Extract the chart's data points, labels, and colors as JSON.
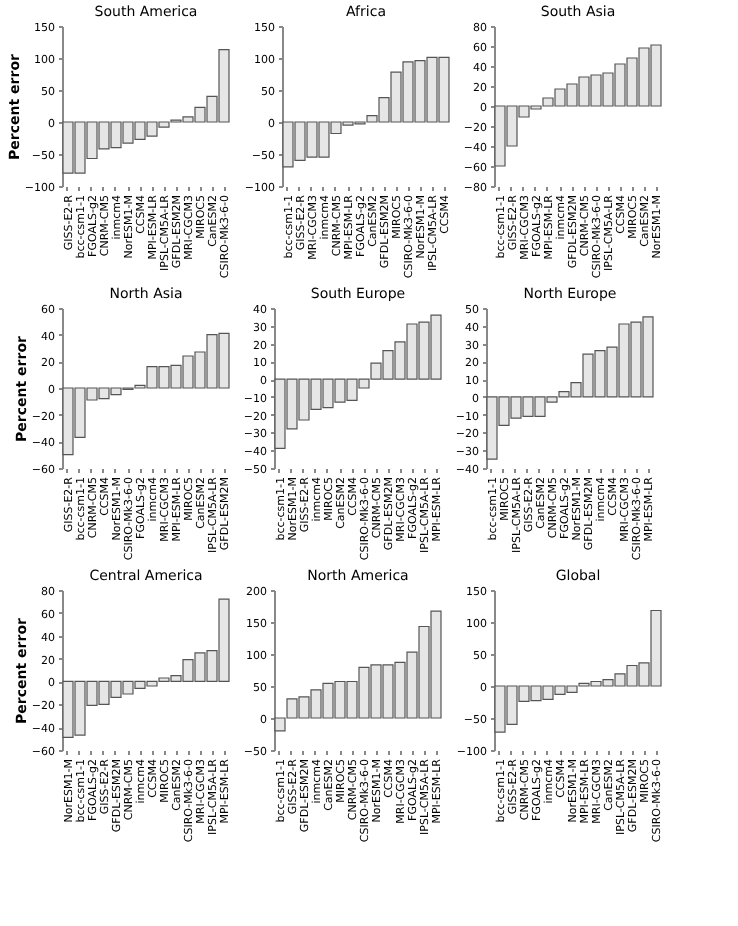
{
  "chart_data": [
    {
      "type": "bar",
      "title": "South America",
      "ylabel": "Percent error",
      "color": "#e6e6e6",
      "ylim": [
        -100,
        150
      ],
      "yticks": [
        -100,
        -50,
        0,
        50,
        100,
        150
      ],
      "categories": [
        "GISS-E2-R",
        "bcc-csm1-1",
        "FGOALS-g2",
        "CNRM-CM5",
        "inmcm4",
        "NorESM1-M",
        "CCSM4",
        "MPI-ESM-LR",
        "IPSL-CM5A-LR",
        "GFDL-ESM2M",
        "MRI-CGCM3",
        "MIROC5",
        "CanESM2",
        "CSIRO-Mk3-6-0"
      ],
      "values": [
        -80,
        -80,
        -57,
        -42,
        -40,
        -33,
        -27,
        -22,
        -8,
        3,
        8,
        23,
        40,
        113
      ]
    },
    {
      "type": "bar",
      "title": "Africa",
      "color": "#e6e6e6",
      "ylim": [
        -100,
        150
      ],
      "yticks": [
        -100,
        -50,
        0,
        50,
        100,
        150
      ],
      "categories": [
        "bcc-csm1-1",
        "GISS-E2-R",
        "MRI-CGCM3",
        "inmcm4",
        "CNRM-CM5",
        "MPI-ESM-LR",
        "FGOALS-g2",
        "CanESM2",
        "GFDL-ESM2M",
        "MIROC5",
        "CSIRO-Mk3-6-0",
        "NorESM1-M",
        "IPSL-CM5A-LR",
        "CCSM4"
      ],
      "values": [
        -70,
        -60,
        -55,
        -55,
        -18,
        -5,
        -3,
        10,
        38,
        78,
        94,
        96,
        101,
        101
      ]
    },
    {
      "type": "bar",
      "title": "South Asia",
      "color": "#e6e6e6",
      "ylim": [
        -80,
        80
      ],
      "yticks": [
        -80,
        -60,
        -40,
        -20,
        0,
        20,
        40,
        60,
        80
      ],
      "categories": [
        "bcc-csm1-1",
        "GISS-E2-R",
        "MRI-CGCM3",
        "FGOALS-g2",
        "MPI-ESM-LR",
        "inmcm4",
        "GFDL-ESM2M",
        "CNRM-CM5",
        "CSIRO-Mk3-6-0",
        "IPSL-CM5A-LR",
        "CCSM4",
        "MIROC5",
        "CanESM2",
        "NorESM1-M"
      ],
      "values": [
        -60,
        -40,
        -11,
        -3,
        8,
        17,
        22,
        29,
        31,
        33,
        42,
        48,
        58,
        61
      ]
    },
    {
      "type": "bar",
      "title": "North Asia",
      "ylabel": "Percent error",
      "color": "#e6e6e6",
      "ylim": [
        -60,
        60
      ],
      "yticks": [
        -60,
        -40,
        -20,
        0,
        20,
        40,
        60
      ],
      "categories": [
        "GISS-E2-R",
        "bcc-csm1-1",
        "CNRM-CM5",
        "CCSM4",
        "NorESM1-M",
        "CSIRO-Mk3-6-0",
        "FGOALS-g2",
        "inmcm4",
        "MRI-CGCM3",
        "MPI-ESM-LR",
        "MIROC5",
        "CanESM2",
        "IPSL-CM5A-LR",
        "GFDL-ESM2M"
      ],
      "values": [
        -50,
        -37,
        -9,
        -8,
        -5,
        -1,
        2,
        16,
        16,
        17,
        24,
        27,
        40,
        41
      ]
    },
    {
      "type": "bar",
      "title": "South Europe",
      "color": "#e6e6e6",
      "ylim": [
        -50,
        40
      ],
      "yticks": [
        -50,
        -40,
        -30,
        -20,
        -10,
        0,
        10,
        20,
        30,
        40
      ],
      "categories": [
        "bcc-csm1-1",
        "NorESM1-M",
        "GISS-E2-R",
        "inmcm4",
        "MIROC5",
        "CanESM2",
        "CCSM4",
        "CSIRO-Mk3-6-0",
        "CNRM-CM5",
        "GFDL-ESM2M",
        "MRI-CGCM3",
        "FGOALS-g2",
        "IPSL-CM5A-LR",
        "MPI-ESM-LR"
      ],
      "values": [
        -39,
        -28,
        -23,
        -17,
        -16,
        -13,
        -12,
        -5,
        9,
        16,
        21,
        31,
        32,
        36
      ]
    },
    {
      "type": "bar",
      "title": "North Europe",
      "color": "#e6e6e6",
      "ylim": [
        -40,
        50
      ],
      "yticks": [
        -40,
        -30,
        -20,
        -10,
        0,
        10,
        20,
        30,
        40,
        50
      ],
      "categories": [
        "bcc-csm1-1",
        "MIROC5",
        "IPSL-CM5A-LR",
        "GISS-E2-R",
        "CanESM2",
        "CNRM-CM5",
        "FGOALS-g2",
        "NorESM1-M",
        "GFDL-ESM2M",
        "inmcm4",
        "CCSM4",
        "MRI-CGCM3",
        "CSIRO-Mk3-6-0",
        "MPI-ESM-LR"
      ],
      "values": [
        -35,
        -16,
        -12,
        -11,
        -11,
        -3,
        3,
        8,
        24,
        26,
        28,
        41,
        42,
        45
      ]
    },
    {
      "type": "bar",
      "title": "Central America",
      "ylabel": "Percent error",
      "color": "#e6e6e6",
      "ylim": [
        -60,
        80
      ],
      "yticks": [
        -60,
        -40,
        -20,
        0,
        20,
        40,
        60,
        80
      ],
      "categories": [
        "NorESM1-M",
        "bcc-csm1-1",
        "FGOALS-g2",
        "GISS-E2-R",
        "GFDL-ESM2M",
        "CNRM-CM5",
        "inmcm4",
        "CCSM4",
        "MIROC5",
        "CanESM2",
        "CSIRO-Mk3-6-0",
        "MRI-CGCM3",
        "IPSL-CM5A-LR",
        "MPI-ESM-LR"
      ],
      "values": [
        -49,
        -47,
        -21,
        -20,
        -14,
        -11,
        -6,
        -4,
        3,
        5,
        19,
        25,
        27,
        72
      ]
    },
    {
      "type": "bar",
      "title": "North America",
      "color": "#e6e6e6",
      "ylim": [
        -50,
        200
      ],
      "yticks": [
        -50,
        0,
        50,
        100,
        150,
        200
      ],
      "categories": [
        "bcc-csm1-1",
        "GISS-E2-R",
        "GFDL-ESM2M",
        "inmcm4",
        "CanESM2",
        "MIROC5",
        "CNRM-CM5",
        "CSIRO-Mk3-6-0",
        "NorESM1-M",
        "CCSM4",
        "MRI-CGCM3",
        "FGOALS-g2",
        "IPSL-CM5A-LR",
        "MPI-ESM-LR"
      ],
      "values": [
        -20,
        30,
        33,
        44,
        54,
        57,
        57,
        79,
        83,
        83,
        87,
        103,
        143,
        167
      ]
    },
    {
      "type": "bar",
      "title": "Global",
      "color": "#e6e6e6",
      "ylim": [
        -100,
        150
      ],
      "yticks": [
        -100,
        -50,
        0,
        50,
        100,
        150
      ],
      "categories": [
        "bcc-csm1-1",
        "GISS-E2-R",
        "CNRM-CM5",
        "FGOALS-g2",
        "inmcm4",
        "CCSM4",
        "NorESM1-M",
        "MPI-ESM-LR",
        "MRI-CGCM3",
        "CanESM2",
        "IPSL-CM5A-LR",
        "GFDL-ESM2M",
        "MIROC5",
        "CSIRO-Mk3-6-0"
      ],
      "values": [
        -72,
        -60,
        -24,
        -23,
        -21,
        -13,
        -10,
        4,
        7,
        10,
        19,
        32,
        36,
        118
      ]
    }
  ]
}
